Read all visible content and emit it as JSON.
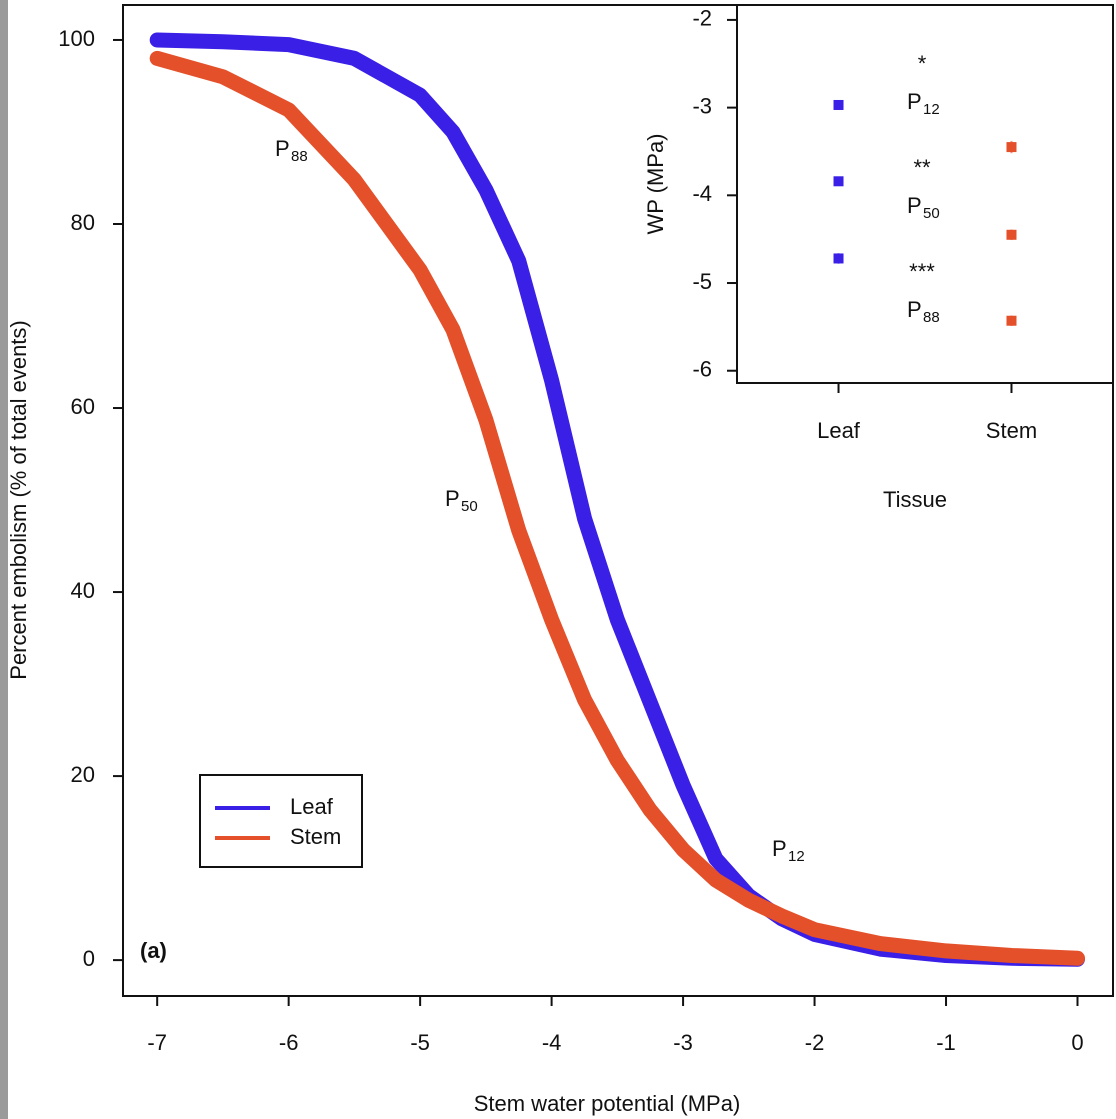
{
  "chart_data": [
    {
      "type": "line",
      "x_label": "Stem water potential (MPa)",
      "y_label": "Percent embolism (% of total events)",
      "x": [
        -7,
        -6.5,
        -6,
        -5.5,
        -5,
        -4.75,
        -4.5,
        -4.25,
        -4,
        -3.75,
        -3.5,
        -3.25,
        -3,
        -2.75,
        -2.5,
        -2.25,
        -2,
        -1.5,
        -1,
        -0.5,
        0
      ],
      "series": [
        {
          "name": "Leaf",
          "color": "#3a1fe6",
          "values": [
            100,
            99.8,
            99.5,
            98,
            94,
            90,
            83.7,
            76,
            63,
            48,
            37,
            28,
            19,
            11,
            7,
            4.5,
            2.8,
            1.2,
            0.5,
            0.2,
            0.1
          ]
        },
        {
          "name": "Stem",
          "color": "#e4502a",
          "values": [
            98,
            96,
            92.4,
            84.8,
            75,
            68.5,
            58.7,
            46.7,
            37,
            28.3,
            21.7,
            16.3,
            12,
            8.7,
            6.5,
            4.8,
            3.3,
            1.8,
            1,
            0.5,
            0.2
          ]
        }
      ],
      "xlim": [
        -7.26,
        0.27
      ],
      "ylim": [
        -3.9,
        103.8
      ],
      "xticks": [
        -7,
        -6,
        -5,
        -4,
        -3,
        -2,
        -1,
        0
      ],
      "yticks": [
        0,
        20,
        40,
        60,
        80,
        100
      ],
      "legend": "lower left",
      "annotations": [
        {
          "text": "P",
          "sub": "88"
        },
        {
          "text": "P",
          "sub": "50"
        },
        {
          "text": "P",
          "sub": "12"
        },
        {
          "text": "(a)"
        }
      ]
    },
    {
      "type": "dot",
      "x_label": "Tissue",
      "y_label": "WP (MPa)",
      "categories": [
        "Leaf",
        "Stem"
      ],
      "colors": [
        "#3a1fe6",
        "#e4502a"
      ],
      "series": [
        {
          "label": {
            "text": "P",
            "sub": "12"
          },
          "significance": "*",
          "values": [
            -2.97,
            -3.45
          ],
          "errors": [
            0.05,
            0.07
          ]
        },
        {
          "label": {
            "text": "P",
            "sub": "50"
          },
          "significance": "**",
          "values": [
            -3.84,
            -4.45
          ],
          "errors": [
            0.04,
            0.06
          ]
        },
        {
          "label": {
            "text": "P",
            "sub": "88"
          },
          "significance": "***",
          "values": [
            -4.72,
            -5.43
          ],
          "errors": [
            0.06,
            0.06
          ]
        }
      ],
      "ylim": [
        -6.14,
        -1.83
      ],
      "yticks": [
        -6,
        -5,
        -4,
        -3,
        -2
      ]
    }
  ]
}
